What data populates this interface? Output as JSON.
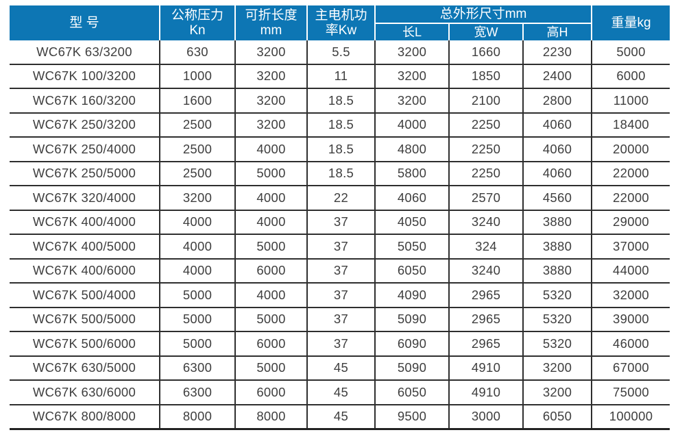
{
  "table": {
    "header": {
      "model": "型 号",
      "pressure_line1": "公称压力",
      "pressure_line2": "Kn",
      "fold_length_line1": "可折长度",
      "fold_length_line2": "mm",
      "motor_power_line1": "主电机功",
      "motor_power_line2": "率Kw",
      "dimensions_group": "总外形尺寸mm",
      "dim_length": "长L",
      "dim_width": "宽W",
      "dim_height": "高H",
      "weight": "重量kg"
    },
    "rows": [
      [
        "WC67K 63/3200",
        "630",
        "3200",
        "5.5",
        "3200",
        "1660",
        "2230",
        "5000"
      ],
      [
        "WC67K 100/3200",
        "1000",
        "3200",
        "11",
        "3200",
        "1850",
        "2400",
        "6000"
      ],
      [
        "WC67K 160/3200",
        "1600",
        "3200",
        "18.5",
        "3200",
        "2100",
        "2800",
        "11000"
      ],
      [
        "WC67K 250/3200",
        "2500",
        "3200",
        "18.5",
        "4000",
        "2250",
        "4060",
        "18400"
      ],
      [
        "WC67K 250/4000",
        "2500",
        "4000",
        "18.5",
        "4800",
        "2250",
        "4060",
        "20000"
      ],
      [
        "WC67K 250/5000",
        "2500",
        "5000",
        "18.5",
        "5800",
        "2250",
        "4060",
        "22000"
      ],
      [
        "WC67K 320/4000",
        "3200",
        "4000",
        "22",
        "4060",
        "2570",
        "4560",
        "22000"
      ],
      [
        "WC67K 400/4000",
        "4000",
        "4000",
        "37",
        "4050",
        "3240",
        "3880",
        "29000"
      ],
      [
        "WC67K 400/5000",
        "4000",
        "5000",
        "37",
        "5050",
        "324",
        "3880",
        "37000"
      ],
      [
        "WC67K 400/6000",
        "4000",
        "6000",
        "37",
        "6050",
        "3240",
        "3880",
        "44000"
      ],
      [
        "WC67K 500/4000",
        "5000",
        "4000",
        "37",
        "4090",
        "2965",
        "5320",
        "32000"
      ],
      [
        "WC67K 500/5000",
        "5000",
        "5000",
        "37",
        "5090",
        "2965",
        "5320",
        "39000"
      ],
      [
        "WC67K 500/6000",
        "5000",
        "6000",
        "37",
        "6090",
        "2965",
        "5320",
        "46000"
      ],
      [
        "WC67K 630/5000",
        "6300",
        "5000",
        "45",
        "5090",
        "4910",
        "3200",
        "67000"
      ],
      [
        "WC67K 630/6000",
        "6300",
        "6000",
        "45",
        "6050",
        "4910",
        "3200",
        "75000"
      ],
      [
        "WC67K 800/8000",
        "8000",
        "8000",
        "45",
        "9500",
        "3000",
        "6050",
        "100000"
      ]
    ]
  },
  "colors": {
    "header_bg": "#0d76b4",
    "header_text": "#ffffff",
    "cell_text": "#3e3e3e",
    "grid_line": "#2e2e2e"
  }
}
